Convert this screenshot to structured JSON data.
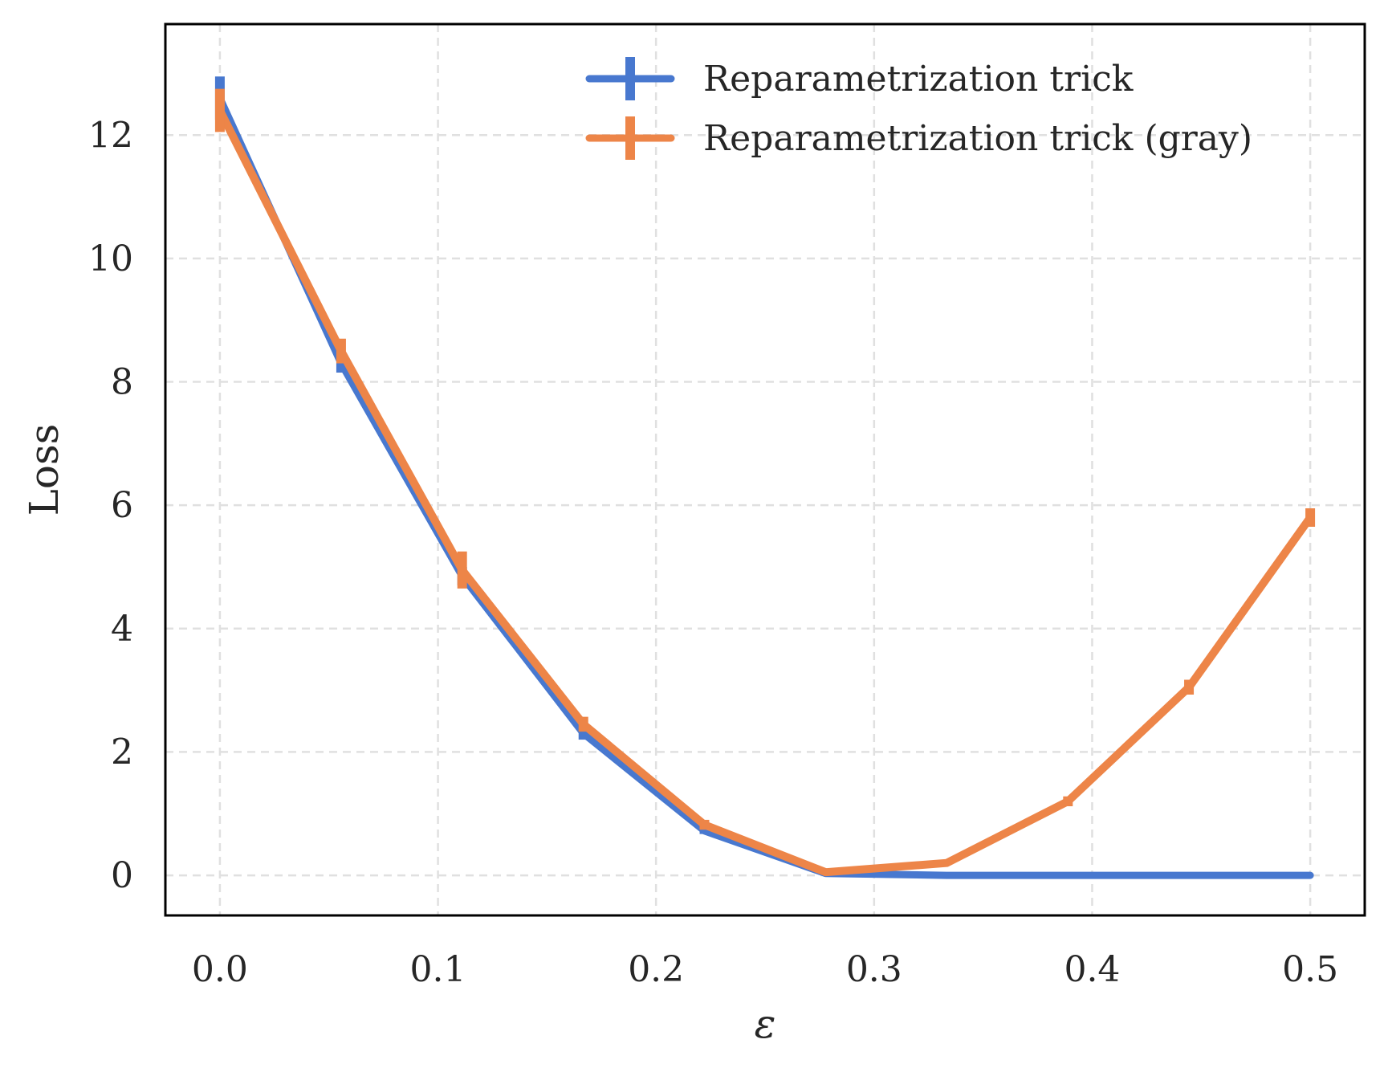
{
  "chart_data": {
    "type": "line",
    "xlabel": "ε",
    "ylabel": "Loss",
    "xlim": [
      -0.025,
      0.525
    ],
    "ylim": [
      -0.65,
      13.8
    ],
    "xticks": [
      0.0,
      0.1,
      0.2,
      0.3,
      0.4,
      0.5
    ],
    "xtick_labels": [
      "0.0",
      "0.1",
      "0.2",
      "0.3",
      "0.4",
      "0.5"
    ],
    "yticks": [
      0,
      2,
      4,
      6,
      8,
      10,
      12
    ],
    "ytick_labels": [
      "0",
      "2",
      "4",
      "6",
      "8",
      "10",
      "12"
    ],
    "grid": true,
    "legend_position": "top-right",
    "x": [
      0.0,
      0.0556,
      0.1111,
      0.1667,
      0.2222,
      0.2778,
      0.3333,
      0.3889,
      0.4444,
      0.5
    ],
    "series": [
      {
        "name": "Reparametrization trick",
        "color": "#4878cf",
        "values": [
          12.6,
          8.3,
          4.85,
          2.3,
          0.72,
          0.03,
          0.0,
          0.0,
          0.0,
          0.0
        ],
        "errors": [
          0.35,
          0.15,
          0.15,
          0.1,
          0.05,
          0.02,
          0.0,
          0.0,
          0.0,
          0.0
        ]
      },
      {
        "name": "Reparametrization trick (gray)",
        "color": "#ed8548",
        "values": [
          12.4,
          8.5,
          4.95,
          2.45,
          0.82,
          0.05,
          0.2,
          1.2,
          3.05,
          5.8
        ],
        "errors": [
          0.35,
          0.2,
          0.3,
          0.12,
          0.08,
          0.02,
          0.02,
          0.08,
          0.12,
          0.15
        ]
      }
    ]
  }
}
